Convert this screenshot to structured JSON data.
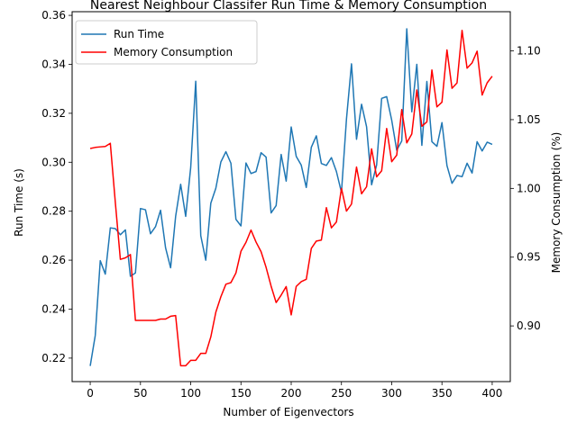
{
  "chart_data": {
    "type": "line",
    "title": "Nearest Neighbour Classifer Run Time & Memory Consumption",
    "xlabel": "Number of Eigenvectors",
    "ylabel_left": "Run Time (s)",
    "ylabel_right": "Memory Consumption (%)",
    "xlim": [
      -18,
      418
    ],
    "ylim_left": [
      0.2104,
      0.3615
    ],
    "ylim_right": [
      0.8595,
      1.1285
    ],
    "x_ticks": [
      0,
      50,
      100,
      150,
      200,
      250,
      300,
      350,
      400
    ],
    "x_tick_labels": [
      "0",
      "50",
      "100",
      "150",
      "200",
      "250",
      "300",
      "350",
      "400"
    ],
    "y_ticks_left": [
      0.22,
      0.24,
      0.26,
      0.28,
      0.3,
      0.32,
      0.34,
      0.36
    ],
    "y_tick_labels_left": [
      "0.22",
      "0.24",
      "0.26",
      "0.28",
      "0.30",
      "0.32",
      "0.34",
      "0.36"
    ],
    "y_ticks_right": [
      0.9,
      0.95,
      1.0,
      1.05,
      1.1
    ],
    "y_tick_labels_right": [
      "0.90",
      "0.95",
      "1.00",
      "1.05",
      "1.10"
    ],
    "legend_position": "top-left",
    "grid": false,
    "x": [
      0,
      5,
      10,
      15,
      20,
      25,
      30,
      35,
      40,
      45,
      50,
      55,
      60,
      65,
      70,
      75,
      80,
      85,
      90,
      95,
      100,
      105,
      110,
      115,
      120,
      125,
      130,
      135,
      140,
      145,
      150,
      155,
      160,
      165,
      170,
      175,
      180,
      185,
      190,
      195,
      200,
      205,
      210,
      215,
      220,
      225,
      230,
      235,
      240,
      245,
      250,
      255,
      260,
      265,
      270,
      275,
      280,
      285,
      290,
      295,
      300,
      305,
      310,
      315,
      320,
      325,
      330,
      335,
      340,
      345,
      350,
      355,
      360,
      365,
      370,
      375,
      380,
      385,
      390,
      395,
      400
    ],
    "series": [
      {
        "name": "Run Time",
        "axis": "left",
        "color": "#1f77b4",
        "values": [
          0.2168,
          0.2292,
          0.2598,
          0.2543,
          0.2732,
          0.2729,
          0.2704,
          0.2724,
          0.2534,
          0.2548,
          0.2811,
          0.2806,
          0.2708,
          0.2737,
          0.2804,
          0.265,
          0.2569,
          0.2779,
          0.291,
          0.2779,
          0.2979,
          0.3331,
          0.27,
          0.26,
          0.2833,
          0.2894,
          0.3001,
          0.3043,
          0.2996,
          0.2767,
          0.274,
          0.2997,
          0.2954,
          0.2962,
          0.3039,
          0.3021,
          0.2793,
          0.2823,
          0.3032,
          0.2923,
          0.3144,
          0.3024,
          0.2988,
          0.2897,
          0.3061,
          0.3108,
          0.2995,
          0.2987,
          0.3019,
          0.2962,
          0.2877,
          0.3177,
          0.3402,
          0.3094,
          0.3237,
          0.3145,
          0.2908,
          0.2989,
          0.3261,
          0.3268,
          0.3172,
          0.3049,
          0.3087,
          0.3545,
          0.3206,
          0.34,
          0.3069,
          0.333,
          0.3084,
          0.3065,
          0.3162,
          0.2986,
          0.2914,
          0.2946,
          0.2941,
          0.2996,
          0.2956,
          0.3084,
          0.3046,
          0.3082,
          0.3073
        ]
      },
      {
        "name": "Memory Consumption",
        "axis": "right",
        "color": "#ff0000",
        "values": [
          1.029,
          1.0298,
          1.0302,
          1.0305,
          1.0328,
          0.9897,
          0.9484,
          0.9495,
          0.9519,
          0.904,
          0.904,
          0.904,
          0.904,
          0.904,
          0.905,
          0.905,
          0.907,
          0.9075,
          0.871,
          0.871,
          0.875,
          0.875,
          0.88,
          0.88,
          0.892,
          0.91,
          0.9212,
          0.9303,
          0.9315,
          0.9385,
          0.9543,
          0.9608,
          0.9697,
          0.961,
          0.954,
          0.9426,
          0.9289,
          0.917,
          0.9224,
          0.9286,
          0.908,
          0.9287,
          0.9322,
          0.9339,
          0.9563,
          0.9617,
          0.9624,
          0.986,
          0.9713,
          0.9756,
          1.0,
          0.9835,
          0.9886,
          1.0155,
          0.9961,
          1.0012,
          1.0288,
          1.0084,
          1.0128,
          1.0436,
          1.0194,
          1.0242,
          1.0573,
          1.0331,
          1.0396,
          1.0716,
          1.0452,
          1.0484,
          1.0861,
          1.0593,
          1.0627,
          1.1007,
          1.0728,
          1.0767,
          1.1149,
          1.0874,
          1.0913,
          1.0998,
          1.0679,
          1.0768,
          1.0816
        ]
      }
    ]
  }
}
